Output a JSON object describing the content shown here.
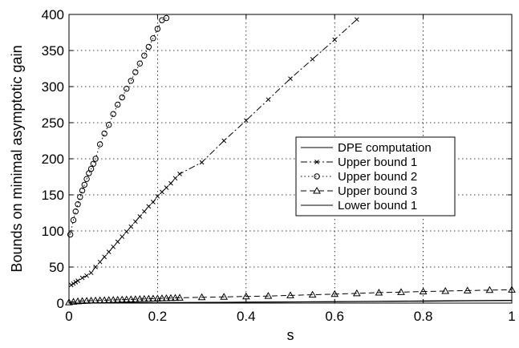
{
  "chart_data": {
    "type": "line",
    "title": "",
    "xlabel": "s",
    "ylabel": "Bounds on minimal asymptotic gain",
    "xlim": [
      0,
      1
    ],
    "ylim": [
      0,
      400
    ],
    "xticks": [
      0,
      0.2,
      0.4,
      0.6,
      0.8,
      1
    ],
    "xtick_labels": [
      "0",
      "0.2",
      "0.4",
      "0.6",
      "0.8",
      "1"
    ],
    "yticks": [
      0,
      50,
      100,
      150,
      200,
      250,
      300,
      350,
      400
    ],
    "ytick_labels": [
      "0",
      "50",
      "100",
      "150",
      "200",
      "250",
      "300",
      "350",
      "400"
    ],
    "grid": true,
    "legend_position": "right-middle",
    "series": [
      {
        "name": "DPE computation",
        "line": "solid",
        "marker": "none",
        "x": [
          0,
          0.05,
          0.1,
          0.2,
          0.3,
          0.4,
          0.5,
          0.6,
          0.7,
          0.8,
          0.9,
          1.0
        ],
        "y": [
          0,
          0.2,
          0.4,
          0.7,
          1.0,
          1.3,
          1.7,
          2.1,
          2.6,
          3.0,
          3.4,
          3.9
        ]
      },
      {
        "name": "Upper bound 1",
        "line": "dashdot",
        "marker": "x",
        "x": [
          0.005,
          0.01,
          0.015,
          0.02,
          0.03,
          0.04,
          0.05,
          0.06,
          0.07,
          0.08,
          0.09,
          0.1,
          0.11,
          0.12,
          0.13,
          0.14,
          0.15,
          0.16,
          0.17,
          0.18,
          0.19,
          0.2,
          0.21,
          0.22,
          0.23,
          0.24,
          0.25,
          0.3,
          0.35,
          0.4,
          0.45,
          0.5,
          0.55,
          0.6,
          0.65
        ],
        "y": [
          25,
          27,
          29,
          31,
          35,
          38,
          42,
          50,
          57,
          64,
          71,
          78,
          85,
          92,
          99,
          106,
          113,
          120,
          127,
          134,
          140,
          148,
          154,
          160,
          166,
          173,
          179,
          195,
          225,
          253,
          282,
          311,
          338,
          365,
          393
        ]
      },
      {
        "name": "Upper bound 2",
        "line": "dotted",
        "marker": "o",
        "x": [
          0.003,
          0.01,
          0.015,
          0.02,
          0.025,
          0.03,
          0.035,
          0.04,
          0.045,
          0.05,
          0.055,
          0.06,
          0.07,
          0.08,
          0.09,
          0.1,
          0.11,
          0.12,
          0.13,
          0.14,
          0.15,
          0.16,
          0.17,
          0.18,
          0.19,
          0.2,
          0.21,
          0.22
        ],
        "y": [
          95,
          115,
          127,
          137,
          147,
          156,
          164,
          172,
          180,
          186,
          193,
          200,
          220,
          235,
          247,
          262,
          275,
          285,
          297,
          308,
          320,
          332,
          343,
          355,
          367,
          380,
          392,
          395
        ]
      },
      {
        "name": "Upper bound 3",
        "line": "dashed",
        "marker": "triangle",
        "x": [
          0,
          0.01,
          0.02,
          0.03,
          0.04,
          0.05,
          0.06,
          0.07,
          0.08,
          0.09,
          0.1,
          0.11,
          0.12,
          0.13,
          0.14,
          0.15,
          0.16,
          0.17,
          0.18,
          0.19,
          0.2,
          0.21,
          0.22,
          0.23,
          0.24,
          0.25,
          0.3,
          0.35,
          0.4,
          0.45,
          0.5,
          0.55,
          0.6,
          0.65,
          0.7,
          0.75,
          0.8,
          0.85,
          0.9,
          0.95,
          1.0
        ],
        "y": [
          1,
          1.8,
          2.4,
          2.8,
          3.1,
          3.3,
          3.5,
          3.7,
          3.9,
          4.1,
          4.3,
          4.5,
          4.7,
          4.9,
          5.1,
          5.3,
          5.5,
          5.7,
          5.9,
          6.1,
          6.3,
          6.5,
          6.7,
          6.9,
          7.1,
          7.3,
          8,
          8.6,
          9.2,
          9.8,
          10.7,
          11.5,
          12.5,
          13.5,
          14.5,
          15.2,
          16,
          16.7,
          17.3,
          18,
          18.5
        ]
      },
      {
        "name": "Lower bound 1",
        "line": "solid",
        "marker": "none",
        "x": [
          0,
          0.1,
          0.2,
          0.3,
          0.4,
          0.5,
          0.6,
          0.7,
          0.8,
          0.9,
          1.0
        ],
        "y": [
          0,
          0.3,
          0.6,
          0.9,
          1.2,
          1.5,
          1.8,
          2.2,
          2.6,
          3.0,
          3.4
        ]
      }
    ]
  }
}
